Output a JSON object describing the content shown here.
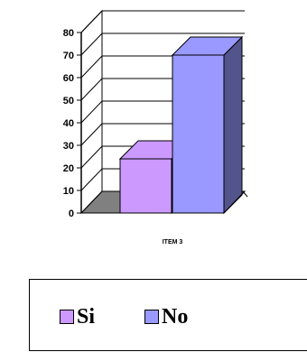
{
  "chart_data": {
    "type": "bar",
    "categories": [
      "ITEM 3"
    ],
    "series": [
      {
        "name": "Si",
        "values": [
          24
        ],
        "color": "#CC99FF"
      },
      {
        "name": "No",
        "values": [
          70
        ],
        "color": "#9999FF"
      }
    ],
    "title": "",
    "xlabel": "",
    "ylabel": "",
    "ylim": [
      0,
      80
    ],
    "yticks": [
      "0",
      "10",
      "20",
      "30",
      "40",
      "50",
      "60",
      "70",
      "80"
    ],
    "grid": true,
    "three_d": true,
    "legend": "bottom"
  }
}
